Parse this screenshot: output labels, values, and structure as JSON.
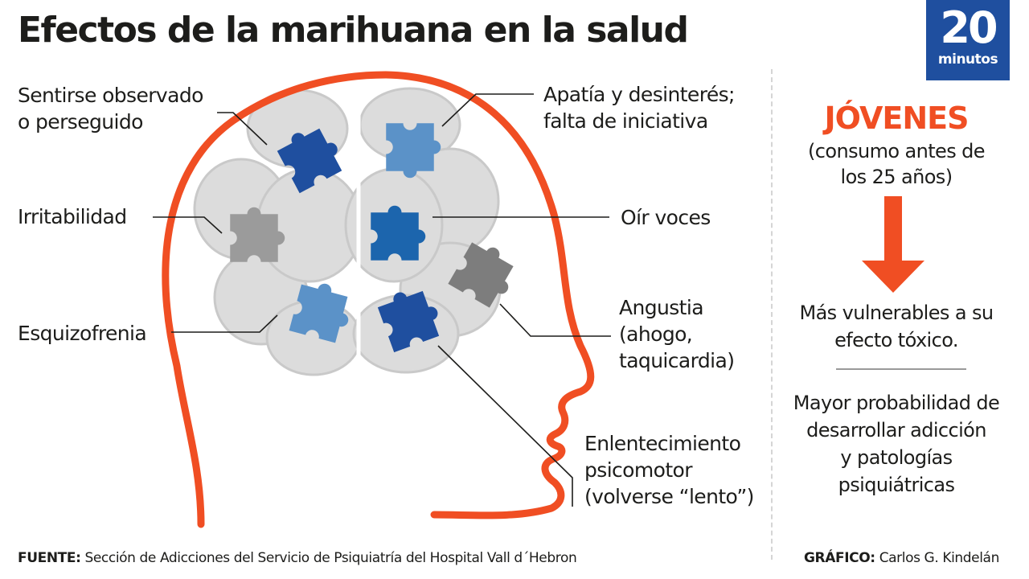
{
  "title": "Efectos de la marihuana en la salud",
  "logo": {
    "number": "20",
    "word": "minutos",
    "color": "#1f4f9f"
  },
  "effects": {
    "perseguido": [
      "Sentirse observado",
      "o perseguido"
    ],
    "apatia": [
      "Apatía y desinterés;",
      "falta de iniciativa"
    ],
    "irritabilidad": "Irritabilidad",
    "voces": "Oír voces",
    "angustia": [
      "Angustia",
      "(ahogo,",
      "taquicardia)"
    ],
    "esquizofrenia": "Esquizofrenia",
    "enlentecimiento": [
      "Enlentecimiento",
      "psicomotor",
      "(volverse “lento”)"
    ]
  },
  "sidebar": {
    "heading": "JÓVENES",
    "subheading": [
      "(consumo antes de",
      "los 25 años)"
    ],
    "vulnerable": [
      "Más vulnerables a su",
      "efecto tóxico."
    ],
    "addiction": [
      "Mayor probabilidad de",
      "desarrollar adicción",
      "y patologías",
      "psiquiátricas"
    ]
  },
  "footer": {
    "source_label": "FUENTE:",
    "source_text": "Sección de Adicciones del Servicio de Psiquiatría del Hospital Vall d´Hebron",
    "credit_label": "GRÁFICO:",
    "credit_text": "Carlos G. Kindelán"
  },
  "colors": {
    "head_outline": "#f04e23",
    "accent": "#f04e23",
    "brain": "#dcdcdc",
    "puzzle_dark_blue": "#1f4f9f",
    "puzzle_light_blue": "#5b92c8",
    "puzzle_mid_blue": "#1c65ad",
    "puzzle_gray": "#9b9b9b",
    "puzzle_dark_gray": "#7d7d7d"
  }
}
